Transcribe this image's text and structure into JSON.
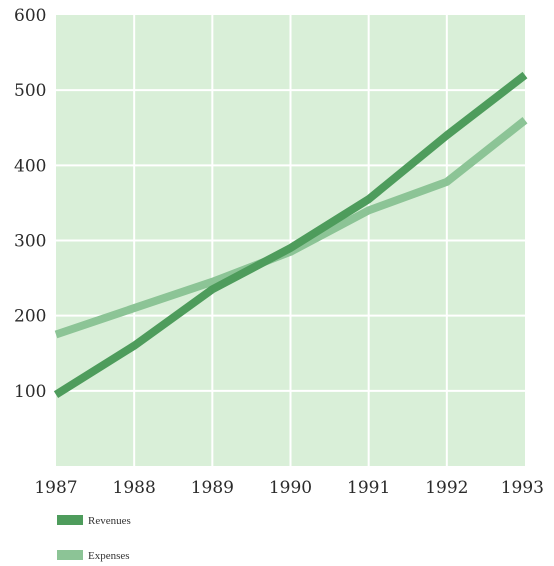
{
  "chart_data": {
    "type": "line",
    "x": [
      "1987",
      "1988",
      "1989",
      "1990",
      "1991",
      "1992",
      "1993"
    ],
    "series": [
      {
        "name": "Revenues",
        "values": [
          95,
          160,
          235,
          290,
          355,
          440,
          520
        ],
        "color": "#4e9c5c"
      },
      {
        "name": "Expenses",
        "values": [
          175,
          210,
          245,
          285,
          340,
          378,
          460
        ],
        "color": "#8cc496"
      }
    ],
    "title": "",
    "xlabel": "",
    "ylabel": "",
    "ylim": [
      0,
      600
    ],
    "yticks": [
      100,
      200,
      300,
      400,
      500,
      600
    ],
    "grid": true,
    "legend_position": "bottom-left",
    "plot_background": "#d9efd8",
    "grid_color": "#ffffff"
  }
}
